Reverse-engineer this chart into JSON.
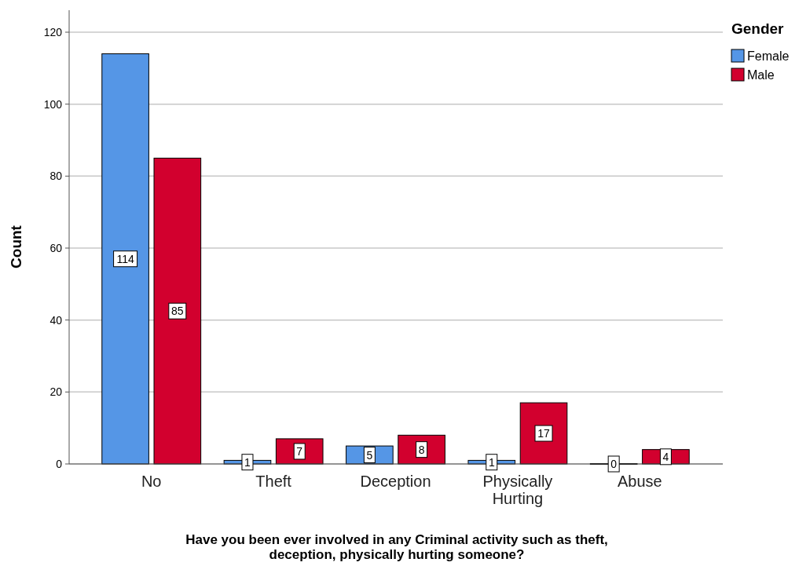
{
  "chart_data": {
    "type": "bar",
    "xlabel": "Have you been ever involved in any Criminal activity such as theft, deception, physically hurting someone?",
    "ylabel": "Count",
    "legend_title": "Gender",
    "categories": [
      "No",
      "Theft",
      "Deception",
      "Physically Hurting",
      "Abuse"
    ],
    "series": [
      {
        "name": "Female",
        "color": "#5596e6",
        "values": [
          114,
          1,
          5,
          1,
          0
        ]
      },
      {
        "name": "Male",
        "color": "#d2002e",
        "values": [
          85,
          7,
          8,
          17,
          4
        ]
      }
    ],
    "ylim": [
      0,
      120
    ],
    "yticks": [
      0,
      20,
      40,
      60,
      80,
      100,
      120
    ],
    "grid": "y",
    "legend": "top right",
    "data_labels": true
  }
}
